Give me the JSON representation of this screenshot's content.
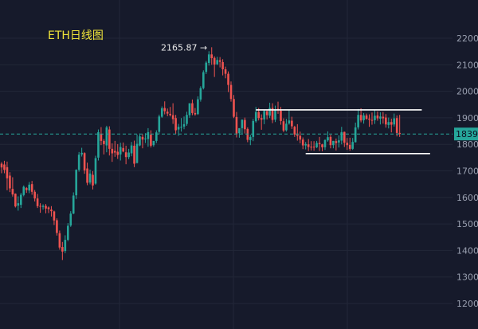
{
  "chart_data": {
    "type": "candlestick",
    "title": "ETH日线图",
    "xlabel": "",
    "ylabel": "",
    "ylim": [
      1100,
      2250
    ],
    "y_ticks": [
      {
        "value": 2200,
        "label": "2200"
      },
      {
        "value": 2100,
        "label": "2100"
      },
      {
        "value": 2000,
        "label": "2000"
      },
      {
        "value": 1900,
        "label": "1900"
      },
      {
        "value": 1800,
        "label": "1800"
      },
      {
        "value": 1700,
        "label": "1700"
      },
      {
        "value": 1600,
        "label": "1600"
      },
      {
        "value": 1500,
        "label": "1500"
      },
      {
        "value": 1400,
        "label": "1400"
      },
      {
        "value": 1300,
        "label": "1300"
      },
      {
        "value": 1200,
        "label": "1200"
      }
    ],
    "grid": true,
    "current_price": 1839,
    "current_price_label": "1839.",
    "high_annotation": {
      "value": 2165.87,
      "label": "2165.87 →",
      "index": 75
    },
    "lines": [
      {
        "from_index": 92,
        "to_index": 152,
        "value": 1930
      },
      {
        "from_index": 110,
        "to_index": 155,
        "value": 1765
      }
    ],
    "up_color": "#26a69a",
    "down_color": "#ef5350",
    "candles": [
      [
        1727,
        1733,
        1713,
        1691
      ],
      [
        1724,
        1738,
        1704,
        1691
      ],
      [
        1714,
        1735,
        1672,
        1627
      ],
      [
        1682,
        1695,
        1634,
        1620
      ],
      [
        1632,
        1676,
        1611,
        1603
      ],
      [
        1614,
        1615,
        1566,
        1562
      ],
      [
        1569,
        1604,
        1578,
        1550
      ],
      [
        1572,
        1617,
        1610,
        1560
      ],
      [
        1609,
        1645,
        1640,
        1604
      ],
      [
        1635,
        1639,
        1628,
        1617
      ],
      [
        1626,
        1658,
        1648,
        1616
      ],
      [
        1650,
        1662,
        1621,
        1610
      ],
      [
        1621,
        1628,
        1596,
        1585
      ],
      [
        1596,
        1613,
        1567,
        1560
      ],
      [
        1568,
        1578,
        1567,
        1542
      ],
      [
        1564,
        1574,
        1568,
        1554
      ],
      [
        1568,
        1575,
        1558,
        1540
      ],
      [
        1562,
        1566,
        1556,
        1541
      ],
      [
        1554,
        1567,
        1548,
        1528
      ],
      [
        1547,
        1550,
        1513,
        1496
      ],
      [
        1514,
        1521,
        1466,
        1456
      ],
      [
        1465,
        1475,
        1411,
        1403
      ],
      [
        1413,
        1432,
        1396,
        1364
      ],
      [
        1398,
        1457,
        1440,
        1390
      ],
      [
        1440,
        1503,
        1493,
        1435
      ],
      [
        1494,
        1548,
        1539,
        1489
      ],
      [
        1539,
        1619,
        1607,
        1537
      ],
      [
        1608,
        1706,
        1704,
        1594
      ],
      [
        1704,
        1771,
        1761,
        1697
      ],
      [
        1762,
        1787,
        1768,
        1754
      ],
      [
        1767,
        1770,
        1702,
        1689
      ],
      [
        1709,
        1731,
        1655,
        1646
      ],
      [
        1656,
        1705,
        1690,
        1649
      ],
      [
        1685,
        1699,
        1645,
        1630
      ],
      [
        1652,
        1757,
        1748,
        1648
      ],
      [
        1750,
        1856,
        1846,
        1739
      ],
      [
        1840,
        1865,
        1813,
        1797
      ],
      [
        1813,
        1820,
        1801,
        1762
      ],
      [
        1796,
        1870,
        1864,
        1770
      ],
      [
        1856,
        1868,
        1783,
        1758
      ],
      [
        1783,
        1804,
        1766,
        1734
      ],
      [
        1775,
        1813,
        1769,
        1753
      ],
      [
        1772,
        1801,
        1760,
        1745
      ],
      [
        1762,
        1806,
        1790,
        1739
      ],
      [
        1786,
        1807,
        1773,
        1770
      ],
      [
        1770,
        1795,
        1752,
        1725
      ],
      [
        1752,
        1783,
        1769,
        1744
      ],
      [
        1766,
        1809,
        1796,
        1755
      ],
      [
        1795,
        1814,
        1727,
        1714
      ],
      [
        1730,
        1837,
        1802,
        1728
      ],
      [
        1796,
        1841,
        1830,
        1793
      ],
      [
        1828,
        1838,
        1818,
        1785
      ],
      [
        1822,
        1842,
        1822,
        1805
      ],
      [
        1820,
        1861,
        1846,
        1791
      ],
      [
        1837,
        1853,
        1795,
        1788
      ],
      [
        1797,
        1810,
        1813,
        1791
      ],
      [
        1813,
        1853,
        1845,
        1805
      ],
      [
        1847,
        1912,
        1905,
        1838
      ],
      [
        1904,
        1943,
        1936,
        1900
      ],
      [
        1937,
        1962,
        1925,
        1913
      ],
      [
        1923,
        1935,
        1916,
        1906
      ],
      [
        1915,
        1941,
        1910,
        1905
      ],
      [
        1910,
        1955,
        1895,
        1877
      ],
      [
        1899,
        1911,
        1853,
        1840
      ],
      [
        1856,
        1877,
        1866,
        1832
      ],
      [
        1866,
        1899,
        1866,
        1848
      ],
      [
        1867,
        1905,
        1876,
        1857
      ],
      [
        1877,
        1923,
        1911,
        1870
      ],
      [
        1910,
        1954,
        1955,
        1900
      ],
      [
        1955,
        1969,
        1918,
        1910
      ],
      [
        1918,
        1937,
        1913,
        1908
      ],
      [
        1914,
        1981,
        1970,
        1911
      ],
      [
        1969,
        2019,
        2012,
        1961
      ],
      [
        2012,
        2079,
        2072,
        2007
      ],
      [
        2073,
        2114,
        2108,
        2065
      ],
      [
        2107,
        2151,
        2139,
        2097
      ],
      [
        2139,
        2166,
        2125,
        2100
      ],
      [
        2126,
        2132,
        2101,
        2054
      ],
      [
        2102,
        2130,
        2118,
        2099
      ],
      [
        2117,
        2129,
        2111,
        2090
      ],
      [
        2110,
        2121,
        2083,
        2060
      ],
      [
        2083,
        2093,
        2066,
        2049
      ],
      [
        2066,
        2075,
        2024,
        1997
      ],
      [
        2024,
        2037,
        1971,
        1961
      ],
      [
        1971,
        1986,
        1904,
        1899
      ],
      [
        1903,
        1922,
        1841,
        1826
      ],
      [
        1842,
        1861,
        1861,
        1825
      ],
      [
        1861,
        1894,
        1893,
        1840
      ],
      [
        1892,
        1901,
        1857,
        1841
      ],
      [
        1858,
        1864,
        1817,
        1808
      ],
      [
        1816,
        1836,
        1828,
        1797
      ],
      [
        1828,
        1896,
        1888,
        1812
      ],
      [
        1887,
        1941,
        1922,
        1882
      ],
      [
        1922,
        1937,
        1899,
        1890
      ],
      [
        1899,
        1913,
        1893,
        1855
      ],
      [
        1894,
        1930,
        1926,
        1876
      ],
      [
        1925,
        1931,
        1910,
        1894
      ],
      [
        1908,
        1957,
        1937,
        1899
      ],
      [
        1937,
        1955,
        1892,
        1880
      ],
      [
        1893,
        1946,
        1932,
        1884
      ],
      [
        1934,
        1961,
        1928,
        1915
      ],
      [
        1927,
        1941,
        1888,
        1874
      ],
      [
        1887,
        1898,
        1852,
        1846
      ],
      [
        1853,
        1896,
        1878,
        1848
      ],
      [
        1879,
        1928,
        1890,
        1874
      ],
      [
        1889,
        1904,
        1868,
        1858
      ],
      [
        1866,
        1870,
        1837,
        1828
      ],
      [
        1836,
        1876,
        1832,
        1814
      ],
      [
        1832,
        1848,
        1818,
        1804
      ],
      [
        1818,
        1826,
        1796,
        1782
      ],
      [
        1796,
        1809,
        1801,
        1781
      ],
      [
        1800,
        1820,
        1790,
        1775
      ],
      [
        1791,
        1812,
        1790,
        1777
      ],
      [
        1791,
        1812,
        1789,
        1776
      ],
      [
        1789,
        1813,
        1805,
        1786
      ],
      [
        1805,
        1828,
        1801,
        1775
      ],
      [
        1800,
        1802,
        1789,
        1774
      ],
      [
        1789,
        1819,
        1816,
        1779
      ],
      [
        1815,
        1849,
        1827,
        1810
      ],
      [
        1828,
        1836,
        1797,
        1785
      ],
      [
        1797,
        1813,
        1813,
        1785
      ],
      [
        1812,
        1822,
        1805,
        1777
      ],
      [
        1807,
        1834,
        1815,
        1788
      ],
      [
        1814,
        1866,
        1846,
        1800
      ],
      [
        1847,
        1848,
        1806,
        1790
      ],
      [
        1806,
        1824,
        1797,
        1779
      ],
      [
        1798,
        1825,
        1783,
        1776
      ],
      [
        1783,
        1824,
        1809,
        1779
      ],
      [
        1808,
        1882,
        1864,
        1807
      ],
      [
        1864,
        1933,
        1911,
        1856
      ],
      [
        1911,
        1936,
        1890,
        1883
      ],
      [
        1891,
        1918,
        1909,
        1878
      ],
      [
        1909,
        1916,
        1896,
        1893
      ],
      [
        1897,
        1913,
        1893,
        1866
      ],
      [
        1892,
        1920,
        1889,
        1874
      ],
      [
        1891,
        1929,
        1908,
        1877
      ],
      [
        1909,
        1924,
        1898,
        1889
      ],
      [
        1897,
        1921,
        1905,
        1875
      ],
      [
        1904,
        1922,
        1898,
        1878
      ],
      [
        1901,
        1914,
        1875,
        1863
      ],
      [
        1873,
        1901,
        1884,
        1860
      ],
      [
        1884,
        1897,
        1874,
        1845
      ],
      [
        1875,
        1916,
        1898,
        1867
      ],
      [
        1899,
        1909,
        1843,
        1830
      ],
      [
        1843,
        1911,
        1839,
        1828
      ]
    ]
  }
}
